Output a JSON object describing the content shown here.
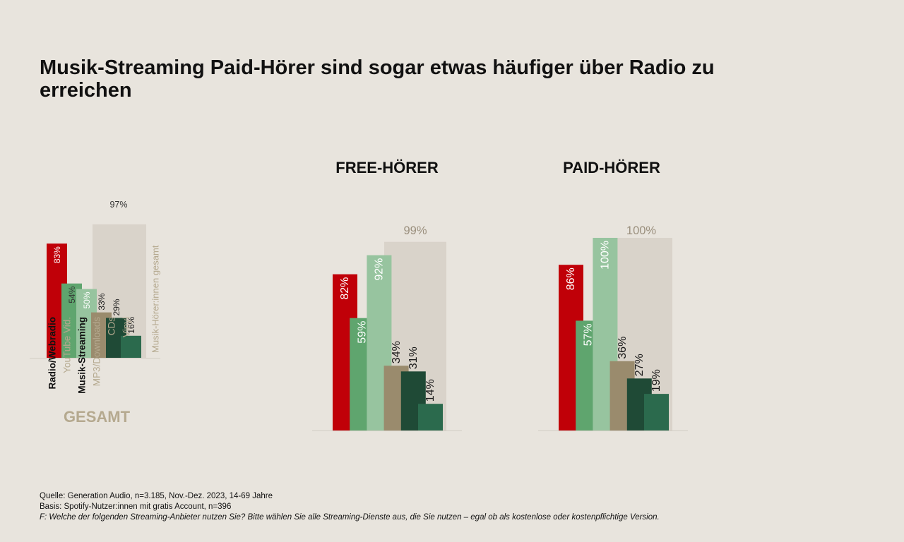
{
  "title": "Musik-Streaming Paid-Hörer sind sogar etwas häufiger über Radio zu erreichen",
  "footnotes": {
    "source": "Quelle: Generation Audio, n=3.185, Nov.-Dez. 2023, 14-69 Jahre",
    "basis": "Basis: Spotify-Nutzer:innen mit gratis Account, n=396",
    "question": "F: Welche der folgenden Streaming-Anbieter nutzen Sie? Bitte wählen Sie alle Streaming-Dienste aus, die Sie nutzen – egal ob als kostenlose oder kostenpflichtige Version."
  },
  "colors": {
    "radio": "#c00008",
    "youtube": "#5fa56e",
    "streaming": "#97c49f",
    "mp3": "#9a8b6d",
    "cds": "#1f4a36",
    "vinyl": "#2b6a4d",
    "total_bg": "#d9d3ca",
    "label_muted": "#b5a98f"
  },
  "chart_data": [
    {
      "type": "bar",
      "title": "",
      "footer_label": "GESAMT",
      "categories": [
        "Radio/Webradio",
        "YouTube Vid.",
        "Musik-Streaming",
        "MP3/Downloads",
        "CDs",
        "Vinyl"
      ],
      "values": [
        83,
        54,
        50,
        33,
        29,
        16
      ],
      "value_labels": [
        "83%",
        "54%",
        "50%",
        "33%",
        "29%",
        "16%"
      ],
      "background": {
        "name": "Musik-Hörer:innen gesamt",
        "value": 97,
        "label": "97%"
      },
      "ylim": [
        0,
        100
      ]
    },
    {
      "type": "bar",
      "title": "FREE-HÖRER",
      "values": [
        82,
        59,
        92,
        34,
        31,
        14
      ],
      "value_labels": [
        "82%",
        "59%",
        "92%",
        "34%",
        "31%",
        "14%"
      ],
      "background": {
        "value": 99,
        "label": "99%"
      },
      "ylim": [
        0,
        100
      ]
    },
    {
      "type": "bar",
      "title": "PAID-HÖRER",
      "values": [
        86,
        57,
        100,
        36,
        27,
        19
      ],
      "value_labels": [
        "86%",
        "57%",
        "100%",
        "36%",
        "27%",
        "19%"
      ],
      "background": {
        "value": 100,
        "label": "100%"
      },
      "ylim": [
        0,
        100
      ]
    }
  ]
}
